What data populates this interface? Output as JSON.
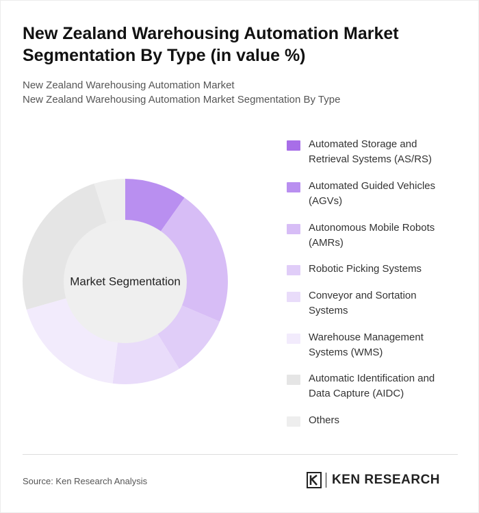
{
  "header": {
    "title": "New Zealand Warehousing Automation Market Segmentation By Type (in value %)",
    "subtitle_line1": "New Zealand Warehousing Automation Market",
    "subtitle_line2": "New Zealand Warehousing Automation Market Segmentation By Type"
  },
  "chart_data": {
    "type": "pie",
    "donut": true,
    "center_label": "Market Segmentation",
    "legend_position": "right",
    "categories": [
      "Automated Storage and Retrieval Systems (AS/RS)",
      "Automated Guided Vehicles (AGVs)",
      "Autonomous Mobile Robots (AMRs)",
      "Robotic Picking Systems",
      "Conveyor and Sortation Systems",
      "Warehouse Management Systems (WMS)",
      "Automatic Identification and Data Capture (AIDC)",
      "Others"
    ],
    "legend_lines": [
      [
        "Automated Storage and",
        "Retrieval Systems (AS/RS)"
      ],
      [
        "Automated Guided Vehicles",
        "(AGVs)"
      ],
      [
        "Autonomous Mobile Robots",
        "(AMRs)"
      ],
      [
        "Robotic Picking Systems"
      ],
      [
        "Conveyor and Sortation",
        "Systems"
      ],
      [
        "Warehouse Management",
        "Systems (WMS)"
      ],
      [
        "Automatic Identification and",
        "Data Capture (AIDC)"
      ],
      [
        "Others"
      ]
    ],
    "values": [
      0,
      10,
      22,
      10,
      11,
      19,
      25,
      5
    ],
    "colors": [
      "#a86ee8",
      "#b98ff0",
      "#d7bdf6",
      "#e0cdf8",
      "#e9dcfa",
      "#f2ebfc",
      "#e5e5e5",
      "#eeeeee"
    ]
  },
  "footer": {
    "source": "Source: Ken Research Analysis",
    "logo_text": "KEN RESEARCH"
  }
}
